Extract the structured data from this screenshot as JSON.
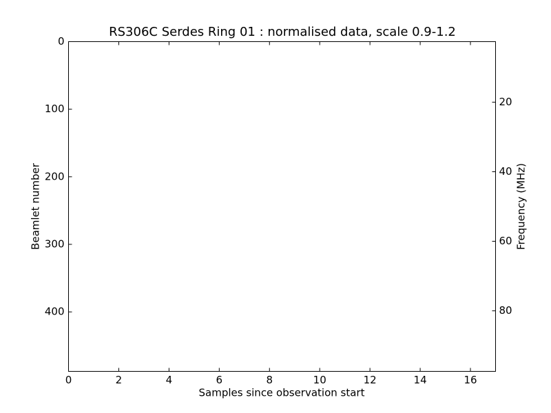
{
  "chart_data": {
    "type": "heatmap",
    "title": "RS306C Serdes Ring 01 : normalised data, scale 0.9-1.2",
    "xlabel": "Samples since observation start",
    "ylabel": "Beamlet number",
    "y2label": "Frequency (MHz)",
    "xlim": [
      0,
      17
    ],
    "xticks": [
      0,
      2,
      4,
      6,
      8,
      10,
      12,
      14,
      16
    ],
    "ylim": [
      488,
      0
    ],
    "yticks": [
      0,
      100,
      200,
      300,
      400
    ],
    "y2lim": [
      97.4,
      2.6
    ],
    "y2ticks": [
      20,
      40,
      60,
      80
    ]
  }
}
